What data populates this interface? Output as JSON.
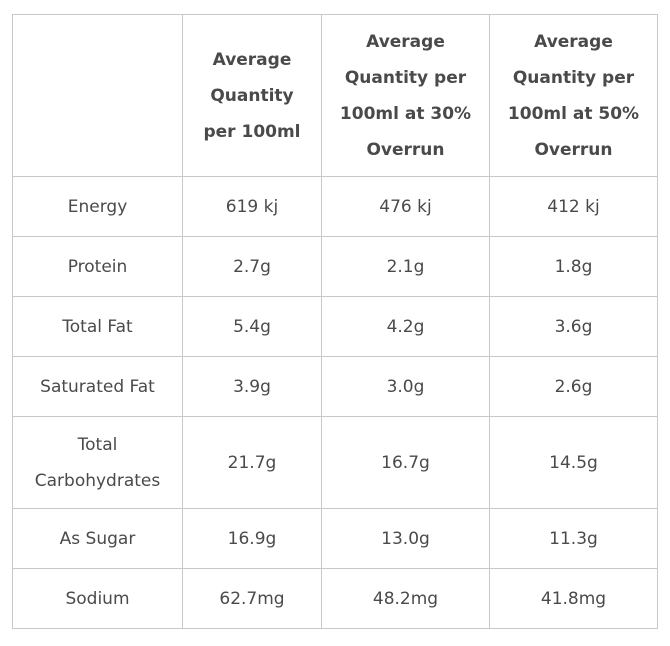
{
  "table": {
    "headers": [
      "",
      "Average Quantity per 100ml",
      "Average Quantity per 100ml at 30% Overrun",
      "Average Quantity per 100ml at 50% Overrun"
    ],
    "rows": [
      {
        "nutrient": "Energy",
        "per100ml": "619 kj",
        "overrun30": "476 kj",
        "overrun50": "412 kj"
      },
      {
        "nutrient": "Protein",
        "per100ml": "2.7g",
        "overrun30": "2.1g",
        "overrun50": "1.8g"
      },
      {
        "nutrient": "Total Fat",
        "per100ml": "5.4g",
        "overrun30": "4.2g",
        "overrun50": "3.6g"
      },
      {
        "nutrient": "Saturated Fat",
        "per100ml": "3.9g",
        "overrun30": "3.0g",
        "overrun50": "2.6g"
      },
      {
        "nutrient": "Total Carbohydrates",
        "per100ml": "21.7g",
        "overrun30": "16.7g",
        "overrun50": "14.5g"
      },
      {
        "nutrient": "As Sugar",
        "per100ml": "16.9g",
        "overrun30": "13.0g",
        "overrun50": "11.3g"
      },
      {
        "nutrient": "Sodium",
        "per100ml": "62.7mg",
        "overrun30": "48.2mg",
        "overrun50": "41.8mg"
      }
    ]
  },
  "colors": {
    "text": "#4a4a4a",
    "border": "#c8c8c8",
    "background": "#ffffff"
  }
}
